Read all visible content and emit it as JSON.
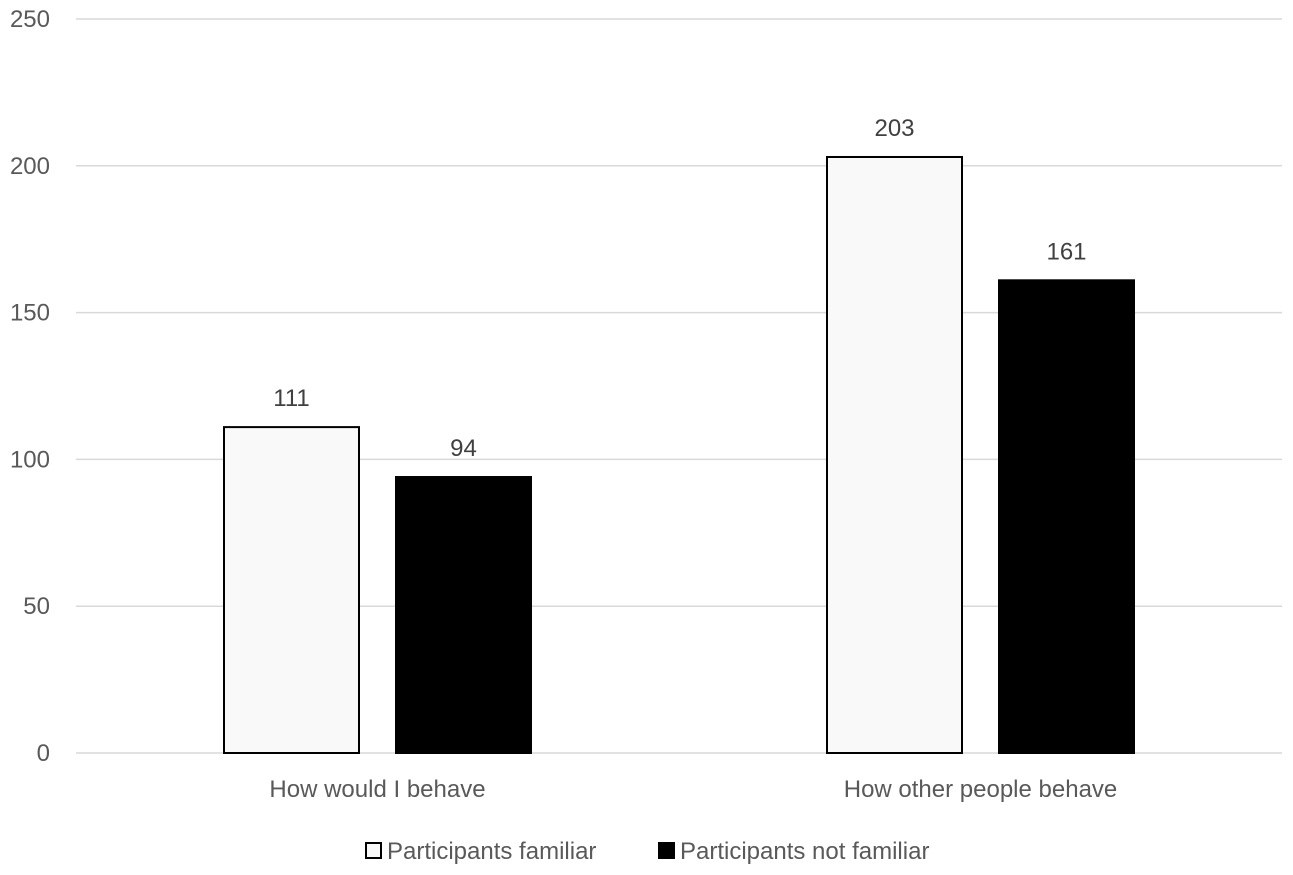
{
  "chart_data": {
    "type": "bar",
    "title": "",
    "xlabel": "",
    "ylabel": "",
    "categories": [
      "How would I behave",
      "How other people behave"
    ],
    "series": [
      {
        "name": "Participants familiar",
        "values": [
          111,
          203
        ],
        "color": "#f9f9f9",
        "stroke": "#000000"
      },
      {
        "name": "Participants not familiar",
        "values": [
          94,
          161
        ],
        "color": "#000000",
        "stroke": "#000000"
      }
    ],
    "ylim": [
      0,
      250
    ],
    "yticks": [
      0,
      50,
      100,
      150,
      200,
      250
    ],
    "grid": true,
    "legend_position": "bottom",
    "data_labels": true,
    "colors": {
      "gridline": "#d9d9d9",
      "text": "#595959",
      "label": "#404040"
    }
  }
}
